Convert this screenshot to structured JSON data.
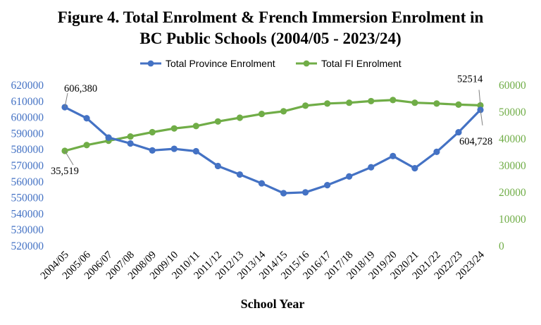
{
  "chart_data": {
    "type": "line",
    "title_lines": [
      "Figure 4. Total Enrolment & French Immersion Enrolment in",
      "BC Public Schools (2004/05 - 2023/24)"
    ],
    "xlabel": "School Year",
    "categories": [
      "2004/05",
      "2005/06",
      "2006/07",
      "2007/08",
      "2008/09",
      "2009/10",
      "2010/11",
      "2011/12",
      "2012/13",
      "2013/14",
      "2014/15",
      "2015/16",
      "2016/17",
      "2017/18",
      "2018/19",
      "2019/20",
      "2020/21",
      "2021/22",
      "2022/23",
      "2023/24"
    ],
    "y_left": {
      "ylim": [
        520000,
        620000
      ],
      "ticks": [
        520000,
        530000,
        540000,
        550000,
        560000,
        570000,
        580000,
        590000,
        600000,
        610000,
        620000
      ],
      "color": "#4472c4"
    },
    "y_right": {
      "ylim": [
        0,
        60000
      ],
      "ticks": [
        0,
        10000,
        20000,
        30000,
        40000,
        50000,
        60000
      ],
      "color": "#70ad47"
    },
    "series": [
      {
        "name": "Total Province Enrolment",
        "axis": "left",
        "color": "#4472c4",
        "values": [
          606380,
          599500,
          587500,
          583800,
          579500,
          580500,
          579000,
          569800,
          564500,
          559000,
          552900,
          553400,
          557900,
          563300,
          569000,
          576000,
          568400,
          578600,
          590800,
          604728
        ]
      },
      {
        "name": "Total FI Enrolment",
        "axis": "right",
        "color": "#70ad47",
        "values": [
          35519,
          37700,
          39300,
          40900,
          42500,
          43900,
          44800,
          46500,
          47900,
          49300,
          50300,
          52400,
          53200,
          53500,
          54100,
          54500,
          53500,
          53200,
          52800,
          52514
        ]
      }
    ],
    "annotations": [
      {
        "text": "606,380",
        "series": 0,
        "index": 0,
        "pos": "above"
      },
      {
        "text": "35,519",
        "series": 1,
        "index": 0,
        "pos": "below"
      },
      {
        "text": "52514",
        "series": 1,
        "index": 19,
        "pos": "above-left"
      },
      {
        "text": "604,728",
        "series": 0,
        "index": 19,
        "pos": "below"
      }
    ],
    "legend_position": "top",
    "grid": false
  }
}
